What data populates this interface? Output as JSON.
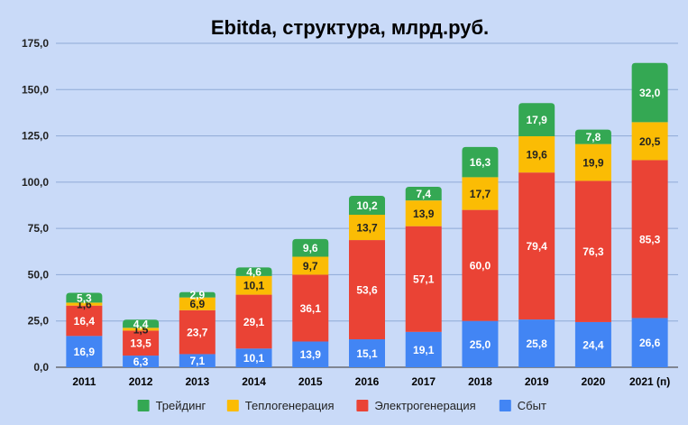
{
  "chart_data": {
    "type": "bar",
    "stacked": true,
    "title": "Ebitda, структура, млрд.руб.",
    "categories": [
      "2011",
      "2012",
      "2013",
      "2014",
      "2015",
      "2016",
      "2017",
      "2018",
      "2019",
      "2020",
      "2021 (п)"
    ],
    "ylim": [
      0,
      175
    ],
    "yticks": [
      "0,0",
      "25,0",
      "50,0",
      "75,0",
      "100,0",
      "125,0",
      "150,0",
      "175,0"
    ],
    "ytick_values": [
      0,
      25,
      50,
      75,
      100,
      125,
      150,
      175
    ],
    "grid": true,
    "legend_position": "bottom",
    "series": [
      {
        "name": "Сбыт",
        "color": "#4285f4",
        "label_color": "#ffffff",
        "values": [
          16.9,
          6.3,
          7.1,
          10.1,
          13.9,
          15.1,
          19.1,
          25.0,
          25.8,
          24.4,
          26.6
        ],
        "labels": [
          "16,9",
          "6,3",
          "7,1",
          "10,1",
          "13,9",
          "15,1",
          "19,1",
          "25,0",
          "25,8",
          "24,4",
          "26,6"
        ]
      },
      {
        "name": "Электрогенерация",
        "color": "#ea4335",
        "label_color": "#ffffff",
        "values": [
          16.4,
          13.5,
          23.7,
          29.1,
          36.1,
          53.6,
          57.1,
          60.0,
          79.4,
          76.3,
          85.3
        ],
        "labels": [
          "16,4",
          "13,5",
          "23,7",
          "29,1",
          "36,1",
          "53,6",
          "57,1",
          "60,0",
          "79,4",
          "76,3",
          "85,3"
        ]
      },
      {
        "name": "Теплогенерация",
        "color": "#fbbc04",
        "label_color": "#222222",
        "values": [
          1.6,
          1.5,
          6.9,
          10.1,
          9.7,
          13.7,
          13.9,
          17.7,
          19.6,
          19.9,
          20.5
        ],
        "labels": [
          "1,6",
          "1,5",
          "6,9",
          "10,1",
          "9,7",
          "13,7",
          "13,9",
          "17,7",
          "19,6",
          "19,9",
          "20,5"
        ]
      },
      {
        "name": "Трейдинг",
        "color": "#34a853",
        "label_color": "#ffffff",
        "values": [
          5.3,
          4.4,
          2.9,
          4.6,
          9.6,
          10.2,
          7.4,
          16.3,
          17.9,
          7.8,
          32.0
        ],
        "labels": [
          "5,3",
          "4,4",
          "2,9",
          "4,6",
          "9,6",
          "10,2",
          "7,4",
          "16,3",
          "17,9",
          "7,8",
          "32,0"
        ]
      }
    ],
    "legend_order": [
      "Трейдинг",
      "Теплогенерация",
      "Электрогенерация",
      "Сбыт"
    ]
  }
}
